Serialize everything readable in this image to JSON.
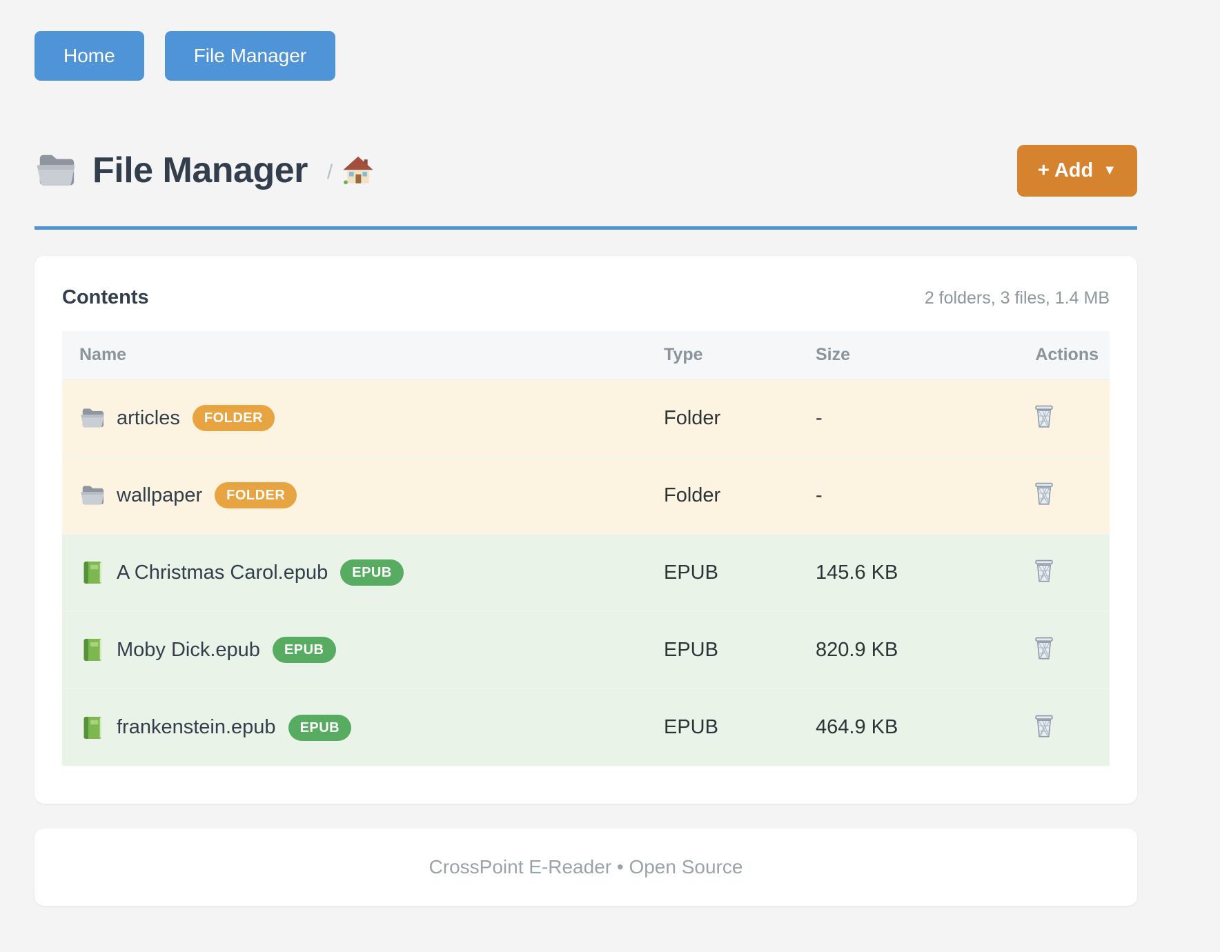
{
  "colors": {
    "accent_blue": "#4e94d7",
    "accent_orange": "#d5832f",
    "badge_orange": "#e8a440",
    "badge_green": "#57ac62",
    "folder_row_bg": "#fcf4e1",
    "epub_row_bg": "#e9f3e7"
  },
  "nav": {
    "home_label": "Home",
    "file_manager_label": "File Manager"
  },
  "header": {
    "title": "File Manager",
    "breadcrumb_separator": "/",
    "add_button": {
      "label": "+ Add",
      "caret": "▼"
    }
  },
  "contents": {
    "title": "Contents",
    "summary": "2 folders, 3 files, 1.4 MB",
    "columns": {
      "name": "Name",
      "type": "Type",
      "size": "Size",
      "actions": "Actions"
    },
    "rows": [
      {
        "kind": "folder",
        "name": "articles",
        "badge": "FOLDER",
        "type": "Folder",
        "size": "-"
      },
      {
        "kind": "folder",
        "name": "wallpaper",
        "badge": "FOLDER",
        "type": "Folder",
        "size": "-"
      },
      {
        "kind": "epub",
        "name": "A Christmas Carol.epub",
        "badge": "EPUB",
        "type": "EPUB",
        "size": "145.6 KB"
      },
      {
        "kind": "epub",
        "name": "Moby Dick.epub",
        "badge": "EPUB",
        "type": "EPUB",
        "size": "820.9 KB"
      },
      {
        "kind": "epub",
        "name": "frankenstein.epub",
        "badge": "EPUB",
        "type": "EPUB",
        "size": "464.9 KB"
      }
    ]
  },
  "footer": {
    "text": "CrossPoint E-Reader • Open Source"
  }
}
